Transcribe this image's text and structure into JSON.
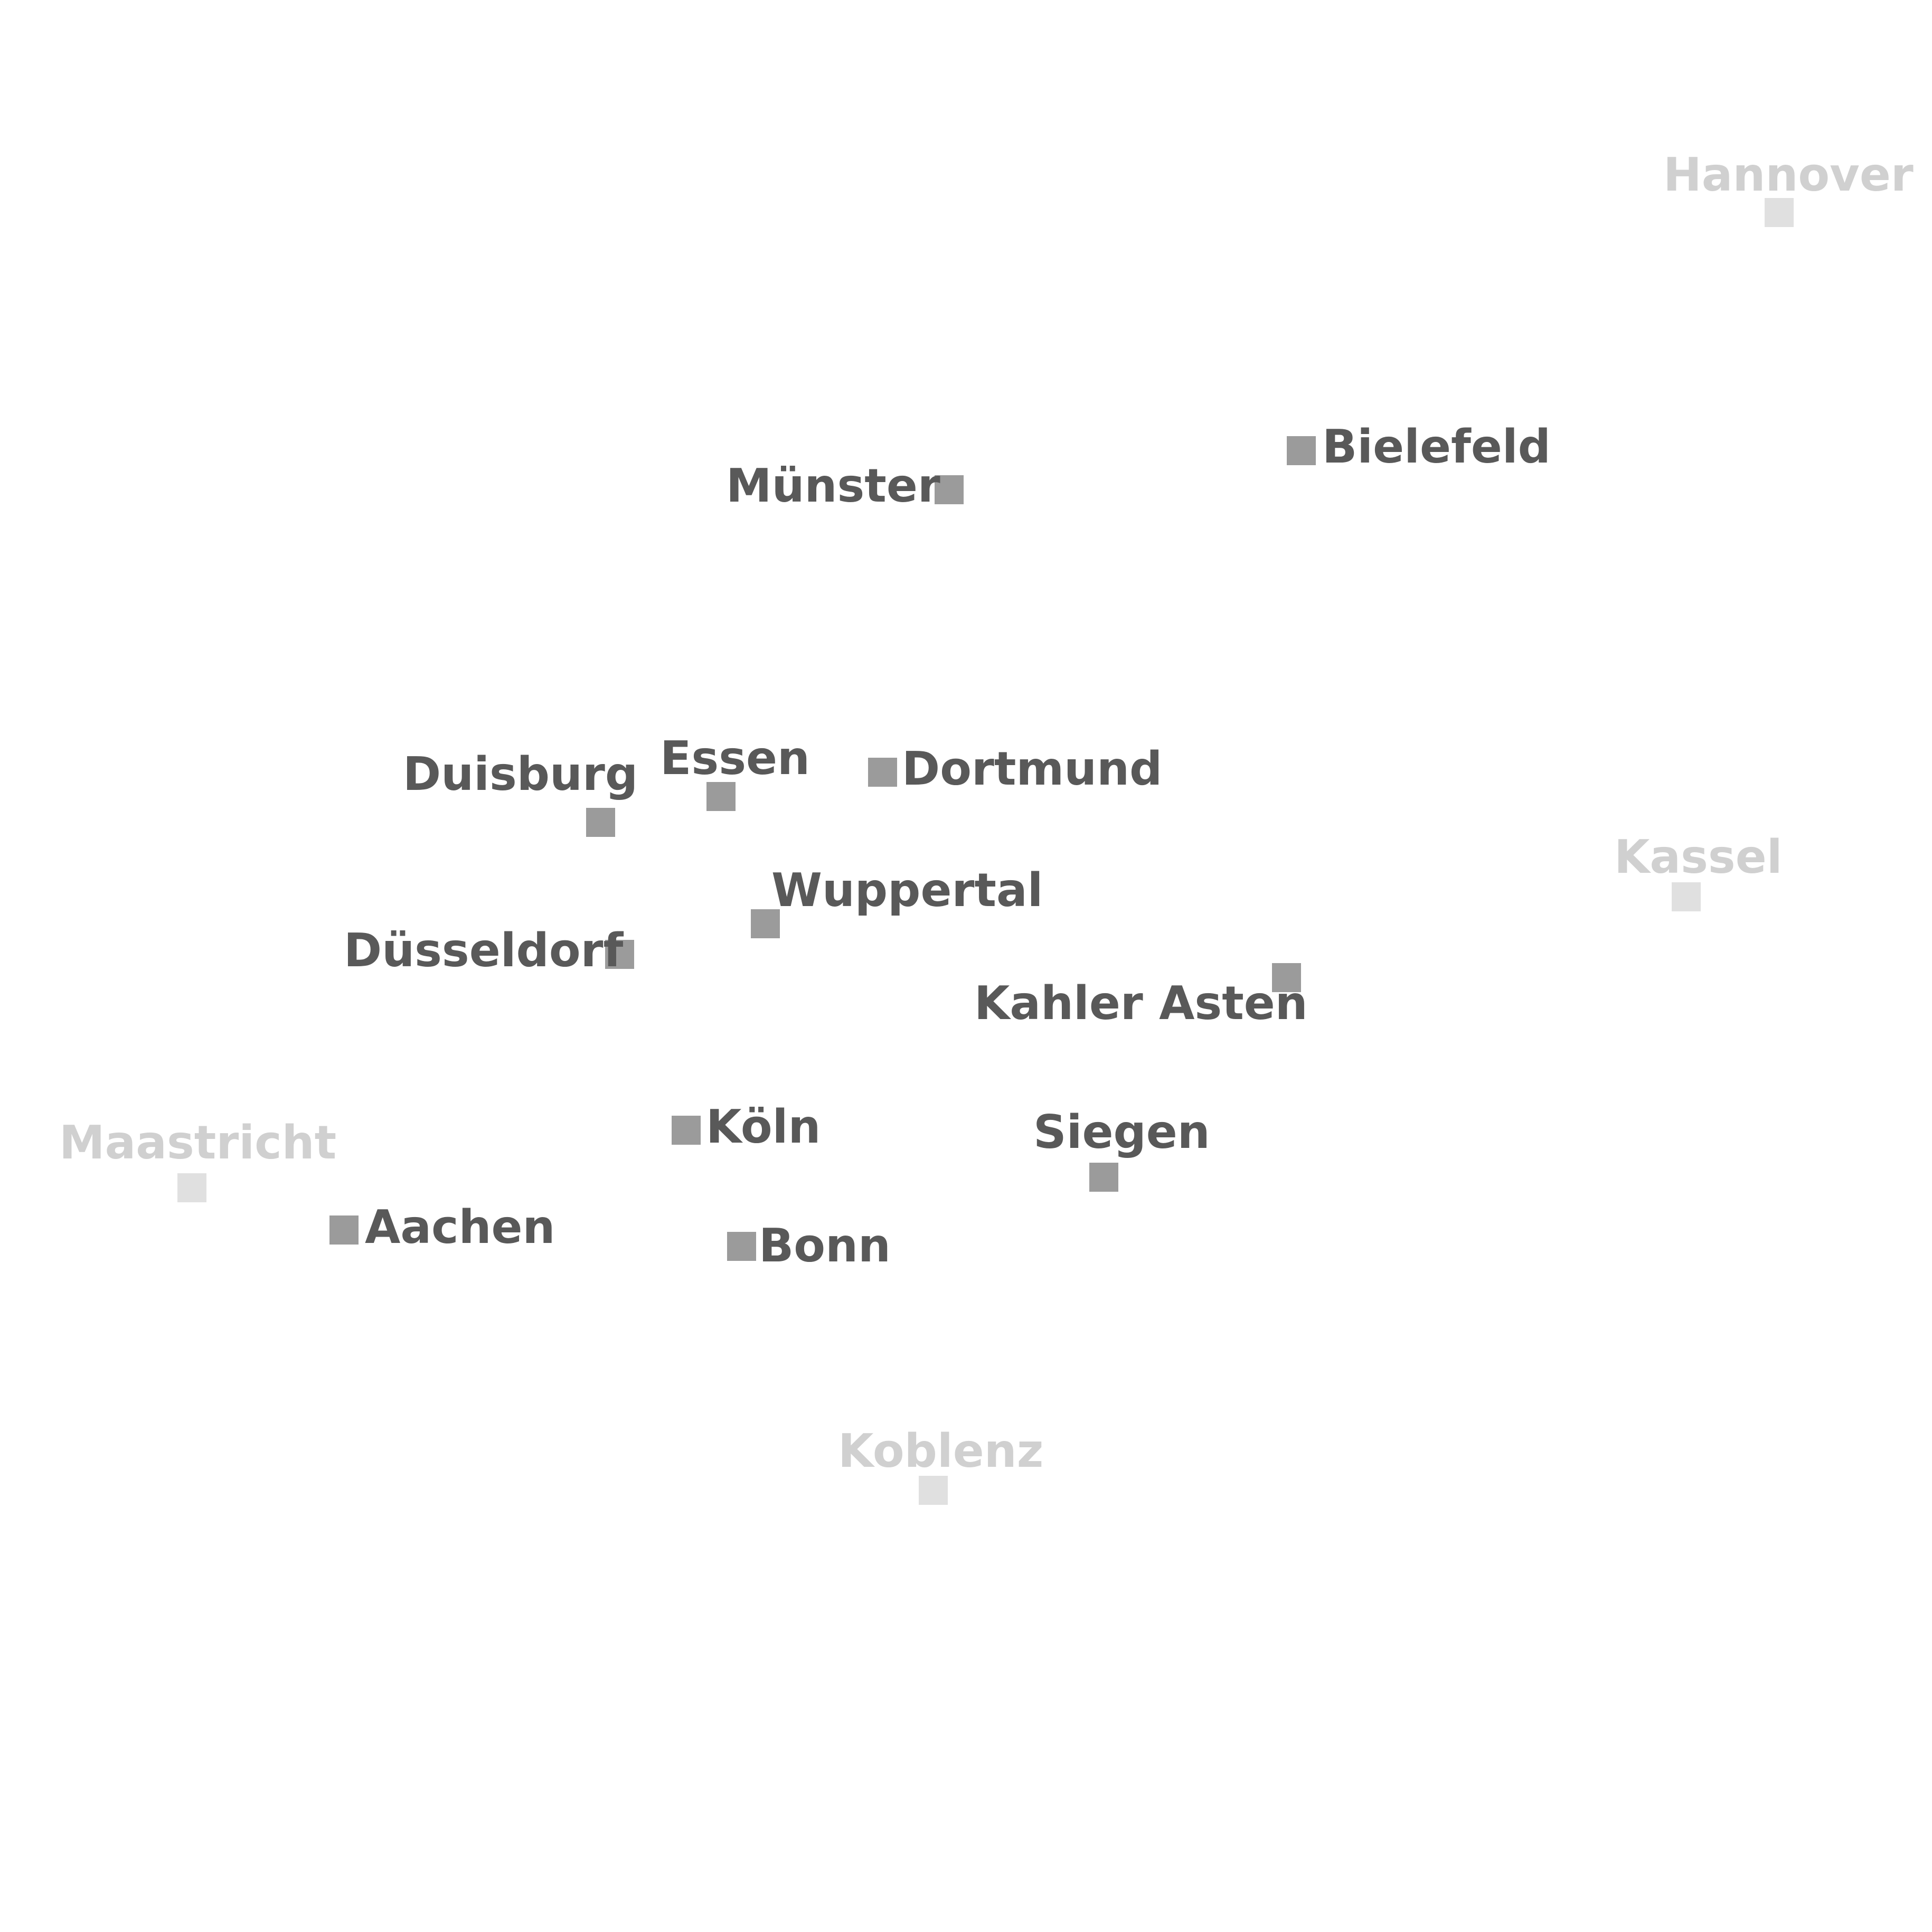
{
  "map": {
    "cities": {
      "hannover": {
        "name": "Hannover",
        "emphasis": "secondary"
      },
      "bielefeld": {
        "name": "Bielefeld",
        "emphasis": "primary"
      },
      "muenster": {
        "name": "Münster",
        "emphasis": "primary"
      },
      "duisburg": {
        "name": "Duisburg",
        "emphasis": "primary"
      },
      "essen": {
        "name": "Essen",
        "emphasis": "primary"
      },
      "dortmund": {
        "name": "Dortmund",
        "emphasis": "primary"
      },
      "kassel": {
        "name": "Kassel",
        "emphasis": "secondary"
      },
      "wuppertal": {
        "name": "Wuppertal",
        "emphasis": "primary"
      },
      "duesseldorf": {
        "name": "Düsseldorf",
        "emphasis": "primary"
      },
      "kahler": {
        "name": "Kahler Asten",
        "emphasis": "primary"
      },
      "koeln": {
        "name": "Köln",
        "emphasis": "primary"
      },
      "siegen": {
        "name": "Siegen",
        "emphasis": "primary"
      },
      "maastricht": {
        "name": "Maastricht",
        "emphasis": "secondary"
      },
      "aachen": {
        "name": "Aachen",
        "emphasis": "primary"
      },
      "bonn": {
        "name": "Bonn",
        "emphasis": "primary"
      },
      "koblenz": {
        "name": "Koblenz",
        "emphasis": "secondary"
      }
    },
    "colors": {
      "primary_marker": "#9b9b9b",
      "primary_label": "#595959",
      "secondary_marker": "#e0e0e0",
      "secondary_label": "#d0d0d0",
      "background": "#ffffff"
    },
    "marker_icon": "square-marker-icon"
  }
}
